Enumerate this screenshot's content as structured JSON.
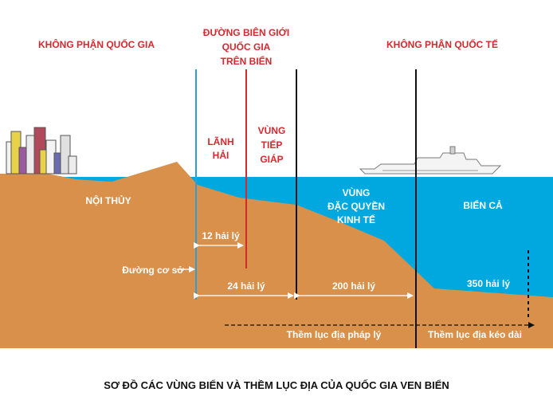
{
  "labels": {
    "national_airspace": "KHÔNG PHẬN QUỐC GIA",
    "border_line1": "ĐƯỜNG BIÊN GIỚI",
    "border_line2": "QUỐC GIA",
    "border_line3": "TRÊN BIỂN",
    "international_airspace": "KHÔNG PHẬN QUỐC TẾ",
    "territorial_sea_line1": "LÃNH",
    "territorial_sea_line2": "HẢI",
    "contiguous_zone_line1": "VÙNG",
    "contiguous_zone_line2": "TIẾP",
    "contiguous_zone_line3": "GIÁP",
    "eez_line1": "VÙNG",
    "eez_line2": "ĐẶC QUYỀN",
    "eez_line3": "KINH TẾ",
    "high_seas": "BIỂN CẢ",
    "internal_waters": "NỘI THỦY",
    "nm_12": "12 hải lý",
    "baseline": "Đường cơ sở",
    "nm_24": "24 hải lý",
    "nm_200": "200 hải lý",
    "nm_350": "350 hải lý",
    "legal_shelf": "Thềm lục địa pháp lý",
    "extended_shelf": "Thềm lục địa kéo dài",
    "caption": "SƠ ĐỒ CÁC VÙNG BIỂN VÀ THỀM LỤC ĐỊA CỦA QUỐC GIA VEN BIỂN"
  },
  "colors": {
    "sky": "#ffffff",
    "sea": "#00a8e0",
    "land": "#d9904a",
    "baseline_line": "#2a9fd8",
    "border_line": "#d7282f",
    "zone_line": "#111111",
    "label_red": "#d7282f"
  }
}
